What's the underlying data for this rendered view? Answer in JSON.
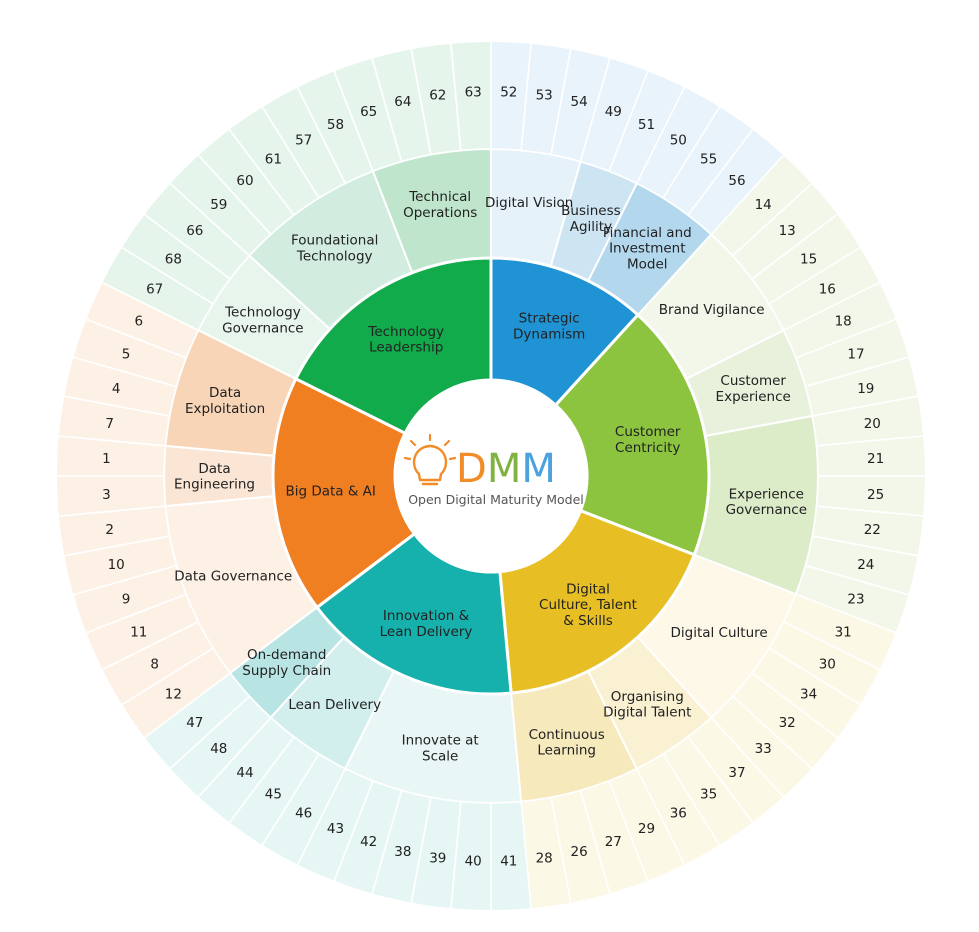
{
  "logo": {
    "letters": [
      "D",
      "M",
      "M"
    ],
    "letter_colors": [
      "#f28c28",
      "#7fb241",
      "#4aa3df"
    ],
    "subtitle": "Open Digital Maturity Model",
    "bulb_color": "#f28c28",
    "bulb_icon": "lightbulb-icon"
  },
  "dimensions": [
    {
      "name": "Strategic Dynamism",
      "label_lines": [
        "Strategic",
        "Dynamism"
      ],
      "color": "#1f93d3",
      "subdimensions": [
        {
          "label_lines": [
            "Digital Vision"
          ],
          "color": "#e6f2fa",
          "criteria": [
            "52",
            "53",
            "54"
          ]
        },
        {
          "label_lines": [
            "Business",
            "Agility"
          ],
          "color": "#cde4f3",
          "criteria": [
            "49",
            "51"
          ]
        },
        {
          "label_lines": [
            "Financial and",
            "Investment",
            "Model"
          ],
          "color": "#b3d8ee",
          "criteria": [
            "50",
            "55",
            "56"
          ]
        }
      ],
      "criteria_color": "#e8f3fb"
    },
    {
      "name": "Customer Centricity",
      "label_lines": [
        "Customer",
        "Centricity"
      ],
      "color": "#8cc43f",
      "subdimensions": [
        {
          "label_lines": [
            "Brand Vigilance"
          ],
          "color": "#f2f7ea",
          "criteria": [
            "14",
            "13",
            "15",
            "16"
          ]
        },
        {
          "label_lines": [
            "Customer",
            "Experience"
          ],
          "color": "#e8f1dc",
          "criteria": [
            "18",
            "17",
            "19"
          ]
        },
        {
          "label_lines": [
            "Experience",
            "Governance"
          ],
          "color": "#dcebc8",
          "criteria": [
            "20",
            "21",
            "25",
            "22",
            "24",
            "23"
          ]
        }
      ],
      "criteria_color": "#f2f7ea"
    },
    {
      "name": "Digital Culture, Talent & Skills",
      "label_lines": [
        "Digital",
        "Culture, Talent",
        "& Skills"
      ],
      "color": "#e7bf25",
      "subdimensions": [
        {
          "label_lines": [
            "Digital Culture"
          ],
          "color": "#fdf8e8",
          "criteria": [
            "31",
            "30",
            "34",
            "32",
            "33"
          ]
        },
        {
          "label_lines": [
            "Organising",
            "Digital Talent"
          ],
          "color": "#faf1d2",
          "criteria": [
            "37",
            "35",
            "36"
          ]
        },
        {
          "label_lines": [
            "Continuous",
            "Learning"
          ],
          "color": "#f6e9bb",
          "criteria": [
            "29",
            "27",
            "26",
            "28"
          ]
        }
      ],
      "criteria_color": "#fcf8e6"
    },
    {
      "name": "Innovation & Lean Delivery",
      "label_lines": [
        "Innovation &",
        "Lean Delivery"
      ],
      "color": "#16b1ad",
      "subdimensions": [
        {
          "label_lines": [
            "Innovate at",
            "Scale"
          ],
          "color": "#e9f6f6",
          "criteria": [
            "41",
            "40",
            "39",
            "38",
            "42",
            "43"
          ]
        },
        {
          "label_lines": [
            "Lean Delivery"
          ],
          "color": "#d2eeed",
          "criteria": [
            "46",
            "45",
            "44"
          ]
        },
        {
          "label_lines": [
            "On-demand",
            "Supply Chain"
          ],
          "color": "#b8e5e3",
          "criteria": [
            "48",
            "47"
          ]
        }
      ],
      "criteria_color": "#e6f6f5"
    },
    {
      "name": "Big Data & AI",
      "label_lines": [
        "Big Data & AI"
      ],
      "color": "#f07f22",
      "subdimensions": [
        {
          "label_lines": [
            "Data Governance"
          ],
          "color": "#fdf1e6",
          "criteria": [
            "12",
            "8",
            "11",
            "9",
            "10",
            "2"
          ]
        },
        {
          "label_lines": [
            "Data",
            "Engineering"
          ],
          "color": "#fbe6d5",
          "criteria": [
            "3",
            "1"
          ]
        },
        {
          "label_lines": [
            "Data",
            "Exploitation"
          ],
          "color": "#f9d5b8",
          "criteria": [
            "7",
            "4",
            "5",
            "6"
          ]
        }
      ],
      "criteria_color": "#fdf1e6"
    },
    {
      "name": "Technology Leadership",
      "label_lines": [
        "Technology",
        "Leadership"
      ],
      "color": "#12ab4b",
      "subdimensions": [
        {
          "label_lines": [
            "Technology",
            "Governance"
          ],
          "color": "#e8f5ec",
          "criteria": [
            "67",
            "68",
            "66"
          ]
        },
        {
          "label_lines": [
            "Foundational",
            "Technology"
          ],
          "color": "#d2ede0",
          "criteria": [
            "59",
            "60",
            "61",
            "57",
            "58"
          ]
        },
        {
          "label_lines": [
            "Technical",
            "Operations"
          ],
          "color": "#bfe5cd",
          "criteria": [
            "65",
            "64",
            "62",
            "63"
          ]
        }
      ],
      "criteria_color": "#e6f5ec"
    }
  ]
}
